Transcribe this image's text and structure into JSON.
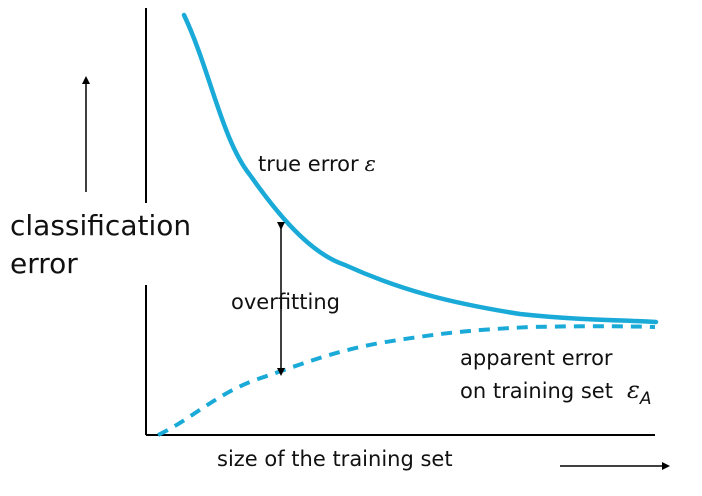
{
  "diagram": {
    "y_axis_label_line1": "classification",
    "y_axis_label_line2": "error",
    "x_axis_label": "size of the training set",
    "true_error_label": "true error",
    "true_error_symbol": "ε",
    "overfitting_label": "overfitting",
    "apparent_error_label_line1": "apparent error",
    "apparent_error_label_line2": "on training set",
    "apparent_error_symbol": "ε",
    "apparent_error_subscript": "A",
    "curve_color": "#1aaad8",
    "axis_color": "#000000"
  }
}
